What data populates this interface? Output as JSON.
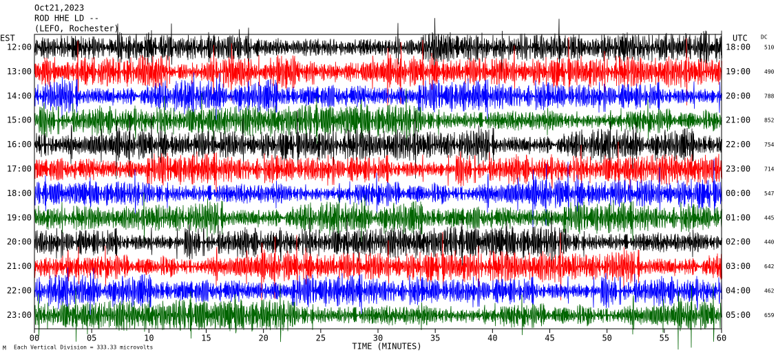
{
  "header": {
    "date": "Oct21,2023",
    "station": "ROD HHE LD --",
    "location": "(LEFO, Rochester)"
  },
  "chart_data": {
    "type": "helicorder",
    "left_axis_label": "EST",
    "right_axis_label": "UTC",
    "dc_label": "DC",
    "rows": [
      {
        "est": "12:00",
        "utc": "18:00",
        "dc": 510
      },
      {
        "est": "13:00",
        "utc": "19:00",
        "dc": 490
      },
      {
        "est": "14:00",
        "utc": "20:00",
        "dc": 788
      },
      {
        "est": "15:00",
        "utc": "21:00",
        "dc": 852
      },
      {
        "est": "16:00",
        "utc": "22:00",
        "dc": 754
      },
      {
        "est": "17:00",
        "utc": "23:00",
        "dc": 714
      },
      {
        "est": "18:00",
        "utc": "00:00",
        "dc": 547
      },
      {
        "est": "19:00",
        "utc": "01:00",
        "dc": 445
      },
      {
        "est": "20:00",
        "utc": "02:00",
        "dc": 440
      },
      {
        "est": "21:00",
        "utc": "03:00",
        "dc": 642
      },
      {
        "est": "22:00",
        "utc": "04:00",
        "dc": 462
      },
      {
        "est": "23:00",
        "utc": "05:00",
        "dc": 659
      }
    ],
    "trace_colors": [
      "#000000",
      "#ff0000",
      "#0000ff",
      "#006400"
    ],
    "xlim": [
      0,
      60
    ],
    "xticks": [
      {
        "value": 0,
        "label": "00"
      },
      {
        "value": 5,
        "label": "05"
      },
      10,
      15,
      20,
      25,
      30,
      35,
      40,
      45,
      50,
      55,
      60
    ],
    "xlabel": "TIME (MINUTES)",
    "footnote": "Each Vertical Division =  333.33 microvolts"
  }
}
